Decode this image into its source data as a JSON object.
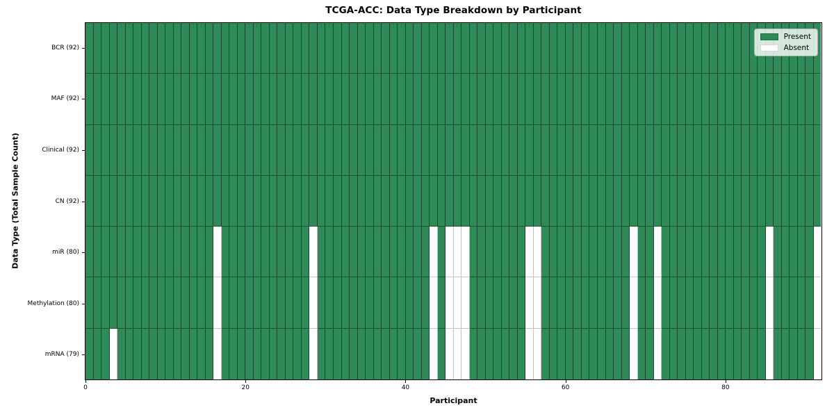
{
  "figure": {
    "title": "TCGA-ACC: Data Type Breakdown by Participant",
    "xlabel": "Participant",
    "ylabel": "Data Type (Total Sample Count)"
  },
  "chart_data": {
    "type": "heatmap",
    "title": "TCGA-ACC: Data Type Breakdown by Participant",
    "xlabel": "Participant",
    "ylabel": "Data Type (Total Sample Count)",
    "n_participants": 92,
    "x_range": [
      0,
      92
    ],
    "x_ticks": [
      0,
      20,
      40,
      60,
      80
    ],
    "legend_position": "upper right",
    "colors": {
      "present": "#2e8b57",
      "absent": "#ffffff"
    },
    "legend_items": [
      {
        "key": "present",
        "label": "Present"
      },
      {
        "key": "absent",
        "label": "Absent"
      }
    ],
    "rows": [
      {
        "label": "BCR (92)",
        "data_type": "BCR",
        "total_samples": 92,
        "absent_participants": []
      },
      {
        "label": "MAF (92)",
        "data_type": "MAF",
        "total_samples": 92,
        "absent_participants": []
      },
      {
        "label": "Clinical (92)",
        "data_type": "Clinical",
        "total_samples": 92,
        "absent_participants": []
      },
      {
        "label": "CN (92)",
        "data_type": "CN",
        "total_samples": 92,
        "absent_participants": []
      },
      {
        "label": "miR (80)",
        "data_type": "miR",
        "total_samples": 80,
        "absent_participants": [
          16,
          28,
          43,
          45,
          46,
          47,
          55,
          56,
          68,
          71,
          85,
          91
        ]
      },
      {
        "label": "Methylation (80)",
        "data_type": "Methylation",
        "total_samples": 80,
        "absent_participants": [
          16,
          28,
          43,
          45,
          46,
          47,
          55,
          56,
          68,
          71,
          85,
          91
        ]
      },
      {
        "label": "mRNA (79)",
        "data_type": "mRNA",
        "total_samples": 79,
        "absent_participants": [
          3,
          16,
          28,
          43,
          45,
          46,
          47,
          55,
          56,
          68,
          71,
          85,
          91
        ]
      }
    ]
  }
}
